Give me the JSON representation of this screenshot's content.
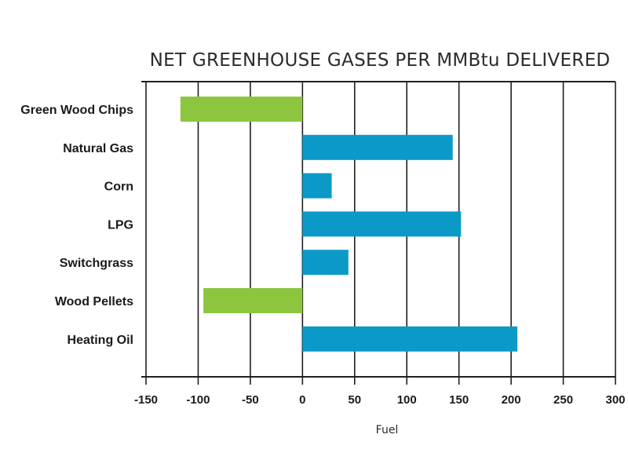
{
  "chart_data": {
    "type": "bar",
    "orientation": "horizontal",
    "title": "NET GREENHOUSE GASES PER MMBtu DELIVERED",
    "xlabel": "Fuel",
    "ylabel": "",
    "categories": [
      "Green Wood Chips",
      "Natural Gas",
      "Corn",
      "LPG",
      "Switchgrass",
      "Wood Pellets",
      "Heating Oil"
    ],
    "values": [
      -117,
      144,
      28,
      152,
      44,
      -95,
      206
    ],
    "xlim": [
      -150,
      300
    ],
    "ticks": [
      -150,
      -100,
      -50,
      0,
      50,
      100,
      150,
      200,
      250,
      300
    ],
    "tick_labels": [
      "-150",
      "-100",
      "-50",
      "0",
      "50",
      "100",
      "150",
      "200",
      "250",
      "300"
    ],
    "grid": true,
    "legend": "none",
    "colors": {
      "negative": "#8cc63f",
      "positive": "#0b9ac7",
      "grid": "#1f1f1f",
      "text": "#1a1a1a"
    }
  }
}
